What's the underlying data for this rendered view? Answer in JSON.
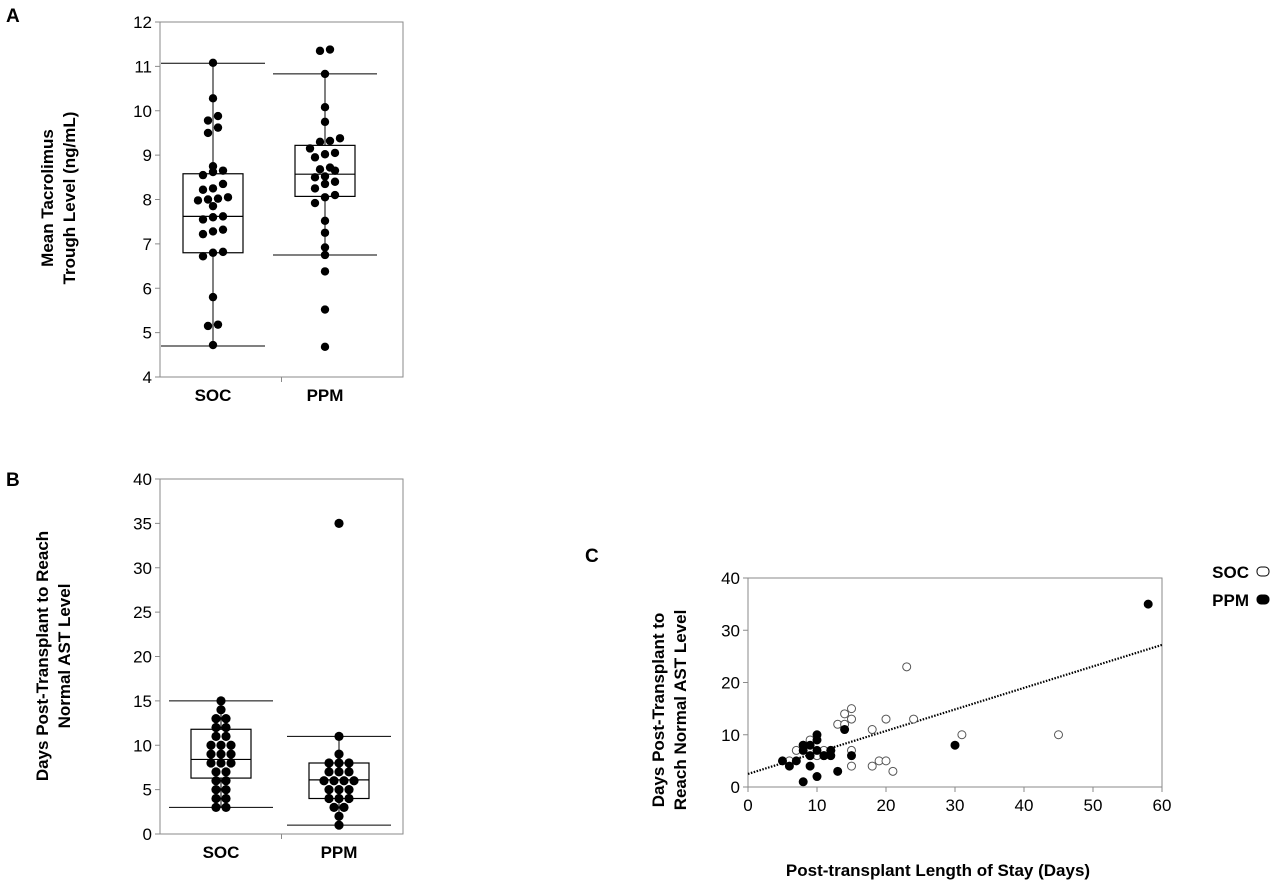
{
  "figure": {
    "panels": [
      {
        "letter": "A",
        "chart_index": 0,
        "ylabel_lines": [
          "Mean Tacrolimus",
          "Trough Level (ng/mL)"
        ]
      },
      {
        "letter": "B",
        "chart_index": 1,
        "ylabel_lines": [
          "Days Post-Transplant to Reach",
          "Normal AST Level"
        ]
      },
      {
        "letter": "C",
        "chart_index": 2,
        "ylabel_lines": [
          "Days Post-Transplant to",
          "Reach Normal AST Level"
        ]
      }
    ]
  },
  "chart_data": [
    {
      "type": "box",
      "panel": "A",
      "title": "",
      "ylabel": "Mean Tacrolimus Trough Level (ng/mL)",
      "xlabel": "",
      "ylim": [
        4,
        12
      ],
      "yticks": [
        4,
        5,
        6,
        7,
        8,
        9,
        10,
        11,
        12
      ],
      "categories": [
        "SOC",
        "PPM"
      ],
      "boxes": [
        {
          "name": "SOC",
          "whisker_low": 4.7,
          "q1": 6.8,
          "median": 7.62,
          "q3": 8.58,
          "whisker_high": 11.07
        },
        {
          "name": "PPM",
          "whisker_low": 6.75,
          "q1": 8.07,
          "median": 8.57,
          "q3": 9.22,
          "whisker_high": 10.83
        }
      ],
      "points": [
        {
          "category": "SOC",
          "values": [
            11.08,
            10.28,
            9.88,
            9.78,
            9.62,
            9.5,
            8.75,
            8.65,
            8.62,
            8.55,
            8.35,
            8.25,
            8.22,
            8.05,
            8.02,
            8.0,
            7.98,
            7.85,
            7.62,
            7.6,
            7.55,
            7.32,
            7.28,
            7.22,
            6.82,
            6.8,
            6.72,
            5.8,
            5.18,
            5.15,
            4.72
          ]
        },
        {
          "category": "PPM",
          "values": [
            11.38,
            11.35,
            10.83,
            10.08,
            9.75,
            9.38,
            9.32,
            9.3,
            9.15,
            9.05,
            9.02,
            8.95,
            8.72,
            8.68,
            8.65,
            8.52,
            8.5,
            8.4,
            8.35,
            8.25,
            8.1,
            8.05,
            7.92,
            7.52,
            7.25,
            6.92,
            6.75,
            6.38,
            5.52,
            4.68
          ]
        }
      ]
    },
    {
      "type": "box",
      "panel": "B",
      "title": "",
      "ylabel": "Days Post-Transplant to Reach Normal AST Level",
      "xlabel": "",
      "ylim": [
        0,
        40
      ],
      "yticks": [
        0,
        5,
        10,
        15,
        20,
        25,
        30,
        35,
        40
      ],
      "categories": [
        "SOC",
        "PPM"
      ],
      "boxes": [
        {
          "name": "SOC",
          "whisker_low": 3,
          "q1": 6.3,
          "median": 8.4,
          "q3": 11.8,
          "whisker_high": 15
        },
        {
          "name": "PPM",
          "whisker_low": 1,
          "q1": 4,
          "median": 6.1,
          "q3": 8,
          "whisker_high": 11
        }
      ],
      "points": [
        {
          "category": "SOC",
          "values": [
            15,
            14,
            13,
            13,
            12,
            12,
            11,
            11,
            10,
            10,
            10,
            9,
            9,
            9,
            8,
            8,
            8,
            7,
            7,
            6,
            6,
            5,
            5,
            4,
            4,
            3,
            3
          ]
        },
        {
          "category": "PPM",
          "values": [
            35,
            11,
            9,
            8,
            8,
            8,
            7,
            7,
            7,
            6,
            6,
            6,
            6,
            5,
            5,
            5,
            4,
            4,
            4,
            3,
            3,
            2,
            1
          ]
        }
      ]
    },
    {
      "type": "scatter",
      "panel": "C",
      "title": "",
      "xlabel": "Post-transplant Length of Stay (Days)",
      "ylabel": "Days Post-Transplant to Reach Normal AST Level",
      "xlim": [
        0,
        60
      ],
      "ylim": [
        0,
        40
      ],
      "xticks": [
        0,
        10,
        20,
        30,
        40,
        50,
        60
      ],
      "yticks": [
        0,
        10,
        20,
        30,
        40
      ],
      "legend_position": "top-right",
      "series": [
        {
          "name": "SOC",
          "marker": "open-circle",
          "color": "#ffffff",
          "points": [
            [
              6,
              5
            ],
            [
              7,
              7
            ],
            [
              8,
              8
            ],
            [
              9,
              7
            ],
            [
              9,
              9
            ],
            [
              10,
              6
            ],
            [
              11,
              7
            ],
            [
              11,
              6
            ],
            [
              12,
              7
            ],
            [
              13,
              12
            ],
            [
              14,
              14
            ],
            [
              14,
              12
            ],
            [
              15,
              15
            ],
            [
              15,
              13
            ],
            [
              15,
              7
            ],
            [
              15,
              4
            ],
            [
              18,
              4
            ],
            [
              18,
              11
            ],
            [
              19,
              5
            ],
            [
              20,
              13
            ],
            [
              20,
              5
            ],
            [
              21,
              3
            ],
            [
              23,
              23
            ],
            [
              24,
              13
            ],
            [
              31,
              10
            ],
            [
              45,
              10
            ]
          ]
        },
        {
          "name": "PPM",
          "marker": "filled-circle",
          "color": "#000000",
          "points": [
            [
              5,
              5
            ],
            [
              6,
              4
            ],
            [
              7,
              5
            ],
            [
              8,
              1
            ],
            [
              8,
              8
            ],
            [
              8,
              7
            ],
            [
              9,
              4
            ],
            [
              9,
              6
            ],
            [
              9,
              8
            ],
            [
              10,
              10
            ],
            [
              10,
              9
            ],
            [
              10,
              7
            ],
            [
              10,
              2
            ],
            [
              11,
              6
            ],
            [
              12,
              7
            ],
            [
              12,
              6
            ],
            [
              13,
              3
            ],
            [
              14,
              11
            ],
            [
              15,
              6
            ],
            [
              30,
              8
            ],
            [
              58,
              35
            ]
          ]
        }
      ],
      "trendline": {
        "style": "dotted",
        "x": [
          0,
          60
        ],
        "y": [
          2.5,
          27.2
        ]
      }
    }
  ]
}
